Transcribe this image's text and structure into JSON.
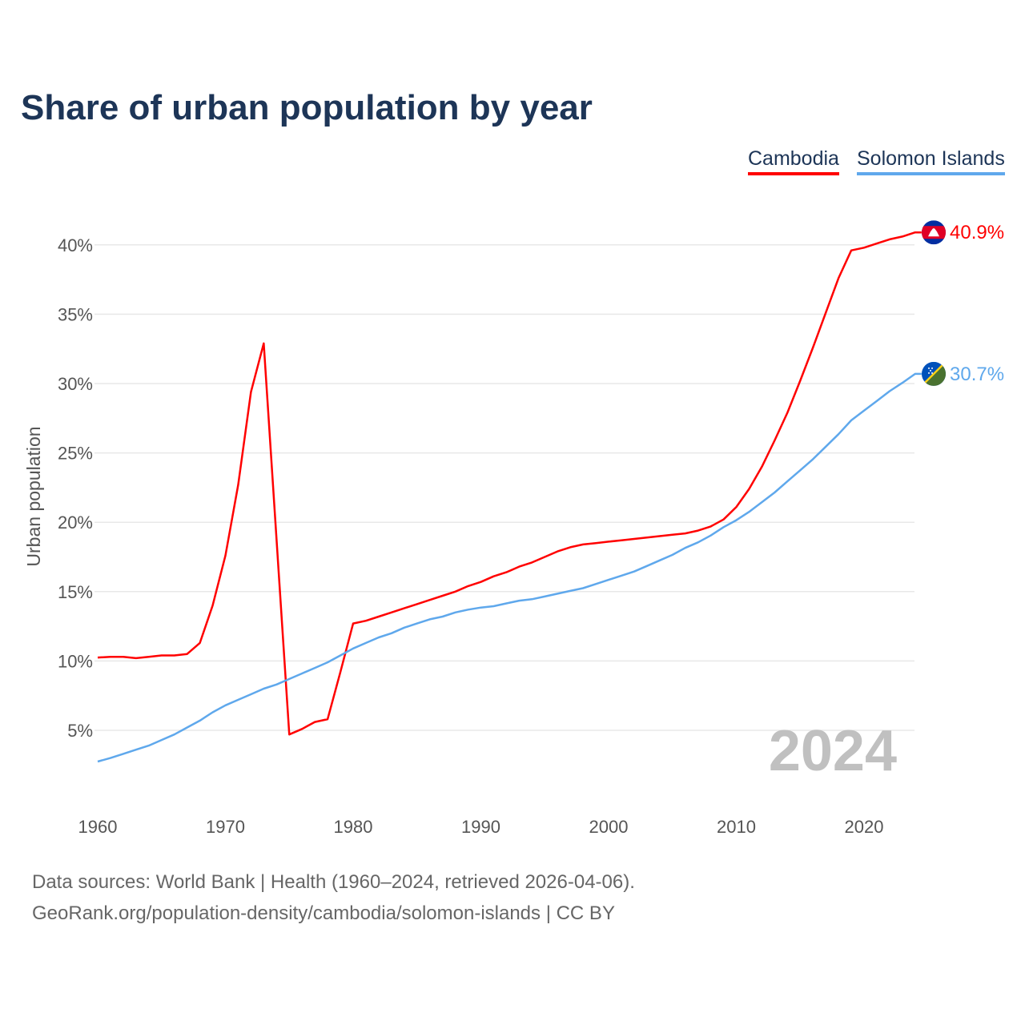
{
  "chart_data": {
    "type": "line",
    "title": "Share of urban population by year",
    "xlabel": "",
    "ylabel": "Urban population",
    "xlim": [
      1960,
      2024
    ],
    "ylim": [
      0,
      42
    ],
    "grid": true,
    "legend_placement": "top-right",
    "x_ticks": [
      1960,
      1970,
      1980,
      1990,
      2000,
      2010,
      2020
    ],
    "x_tick_labels": [
      "1960",
      "1970",
      "1980",
      "1990",
      "2000",
      "2010",
      "2020"
    ],
    "y_ticks": [
      5,
      10,
      15,
      20,
      25,
      30,
      35,
      40
    ],
    "y_tick_labels": [
      "5%",
      "10%",
      "15%",
      "20%",
      "25%",
      "30%",
      "35%",
      "40%"
    ],
    "year_label": "2024",
    "x": [
      1960,
      1961,
      1962,
      1963,
      1964,
      1965,
      1966,
      1967,
      1968,
      1969,
      1970,
      1971,
      1972,
      1973,
      1974,
      1975,
      1976,
      1977,
      1978,
      1979,
      1980,
      1981,
      1982,
      1983,
      1984,
      1985,
      1986,
      1987,
      1988,
      1989,
      1990,
      1991,
      1992,
      1993,
      1994,
      1995,
      1996,
      1997,
      1998,
      1999,
      2000,
      2001,
      2002,
      2003,
      2004,
      2005,
      2006,
      2007,
      2008,
      2009,
      2010,
      2011,
      2012,
      2013,
      2014,
      2015,
      2016,
      2017,
      2018,
      2019,
      2020,
      2021,
      2022,
      2023,
      2024
    ],
    "series": [
      {
        "name": "Cambodia",
        "color": "#ff0000",
        "end_label": "40.9%",
        "values": [
          10.25,
          10.3,
          10.3,
          10.2,
          10.3,
          10.4,
          10.4,
          10.5,
          11.3,
          14.0,
          17.6,
          22.7,
          29.4,
          32.9,
          18.8,
          4.7,
          5.1,
          5.6,
          5.8,
          9.2,
          12.7,
          12.9,
          13.2,
          13.5,
          13.8,
          14.1,
          14.4,
          14.7,
          15.0,
          15.4,
          15.7,
          16.1,
          16.4,
          16.8,
          17.1,
          17.5,
          17.9,
          18.2,
          18.4,
          18.5,
          18.6,
          18.7,
          18.8,
          18.9,
          19.0,
          19.1,
          19.2,
          19.4,
          19.7,
          20.2,
          21.1,
          22.4,
          24.0,
          25.9,
          27.9,
          30.2,
          32.6,
          35.1,
          37.6,
          39.6,
          39.8,
          40.1,
          40.4,
          40.6,
          40.9
        ]
      },
      {
        "name": "Solomon Islands",
        "color": "#5fa8ec",
        "end_label": "30.7%",
        "values": [
          2.75,
          3.0,
          3.3,
          3.6,
          3.9,
          4.3,
          4.7,
          5.2,
          5.7,
          6.3,
          6.8,
          7.2,
          7.6,
          8.0,
          8.3,
          8.7,
          9.1,
          9.5,
          9.9,
          10.4,
          10.9,
          11.3,
          11.7,
          12.0,
          12.4,
          12.7,
          13.0,
          13.2,
          13.5,
          13.7,
          13.85,
          13.95,
          14.15,
          14.35,
          14.45,
          14.65,
          14.85,
          15.05,
          15.25,
          15.55,
          15.85,
          16.15,
          16.45,
          16.85,
          17.25,
          17.65,
          18.15,
          18.55,
          19.05,
          19.65,
          20.15,
          20.75,
          21.45,
          22.15,
          22.95,
          23.75,
          24.55,
          25.45,
          26.35,
          27.35,
          28.05,
          28.75,
          29.45,
          30.05,
          30.7
        ]
      }
    ]
  },
  "footer": {
    "line1": "Data sources: World Bank | Health (1960–2024, retrieved 2026-04-06).",
    "line2": "GeoRank.org/population-density/cambodia/solomon-islands | CC BY"
  }
}
